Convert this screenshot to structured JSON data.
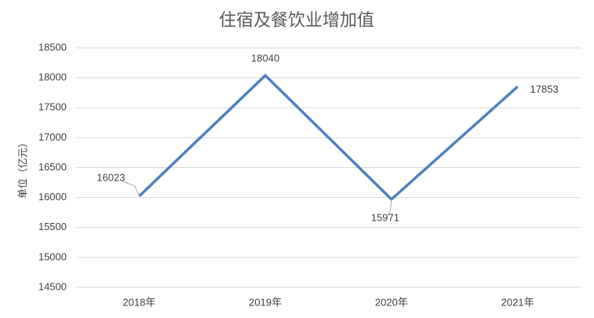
{
  "chart_data": {
    "type": "line",
    "title": "住宿及餐饮业增加值",
    "y_label": "单位（亿元）",
    "categories": [
      "2018年",
      "2019年",
      "2020年",
      "2021年"
    ],
    "series": [
      {
        "name": "住宿及餐饮业增加值",
        "color": "#4f81bd",
        "values": [
          16023,
          18040,
          15971,
          17853
        ]
      }
    ],
    "ylim": [
      14500,
      18500
    ],
    "yticks": [
      14500,
      15000,
      15500,
      16000,
      16500,
      17000,
      17500,
      18000,
      18500
    ],
    "grid": true
  }
}
